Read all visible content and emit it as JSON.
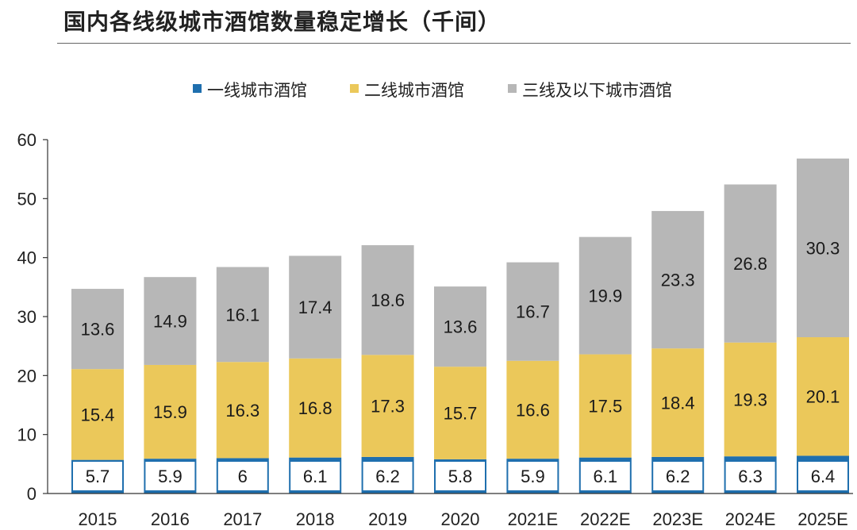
{
  "title": "国内各线级城市酒馆数量稳定增长（千间）",
  "colors": {
    "tier1": "#1f6fae",
    "tier2": "#ebc85a",
    "tier3": "#b7b7b7",
    "axis": "#333333",
    "label": "#1a1a1a"
  },
  "chart_data": {
    "type": "bar",
    "stacked": true,
    "title": "国内各线级城市酒馆数量稳定增长（千间）",
    "categories": [
      "2015",
      "2016",
      "2017",
      "2018",
      "2019",
      "2020",
      "2021E",
      "2022E",
      "2023E",
      "2024E",
      "2025E"
    ],
    "series": [
      {
        "name": "一线城市酒馆",
        "values": [
          5.7,
          5.9,
          6,
          6.1,
          6.2,
          5.8,
          5.9,
          6.1,
          6.2,
          6.3,
          6.4
        ]
      },
      {
        "name": "二线城市酒馆",
        "values": [
          15.4,
          15.9,
          16.3,
          16.8,
          17.3,
          15.7,
          16.6,
          17.5,
          18.4,
          19.3,
          20.1
        ]
      },
      {
        "name": "三线及以下城市酒馆",
        "values": [
          13.6,
          14.9,
          16.1,
          17.4,
          18.6,
          13.6,
          16.7,
          19.9,
          23.3,
          26.8,
          30.3
        ]
      }
    ],
    "xlabel": "",
    "ylabel": "",
    "ylim": [
      0,
      60
    ],
    "yticks": [
      0,
      10,
      20,
      30,
      40,
      50,
      60
    ],
    "legend_position": "top-center"
  }
}
